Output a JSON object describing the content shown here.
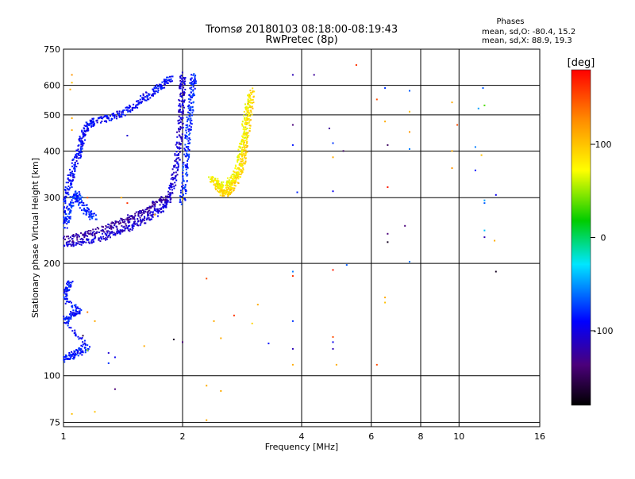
{
  "chart_data": {
    "type": "scatter",
    "title": "Tromsø 20180103 08:18:00-08:19:43",
    "subtitle": "RwPretec (8p)",
    "xlabel": "Frequency [MHz]",
    "ylabel": "Stationary phase Virtual Height [km]",
    "x_scale": "log",
    "y_scale": "log",
    "xlim": [
      1,
      16
    ],
    "ylim": [
      73,
      750
    ],
    "x_ticks": [
      1,
      2,
      4,
      6,
      8,
      10,
      16
    ],
    "x_tick_labels": [
      "1",
      "2",
      "4",
      "6",
      "8",
      "10",
      "16"
    ],
    "y_ticks": [
      75,
      100,
      200,
      300,
      400,
      500,
      600,
      750
    ],
    "y_tick_labels": [
      "75",
      "100",
      "200",
      "300",
      "400",
      "500",
      "600",
      "750"
    ],
    "grid": true,
    "stats": {
      "heading": "Phases",
      "line_o": "mean, sd,O: -80.4, 15.2",
      "line_x": "mean, sd,X:  88.9, 19.3"
    },
    "colorbar": {
      "label": "[deg]",
      "range": [
        -180,
        180
      ],
      "ticks": [
        100,
        0,
        -100
      ],
      "tick_labels": [
        "100",
        "0",
        "-100"
      ]
    },
    "traces": [
      {
        "kind": "trace",
        "phase": -110,
        "points": [
          [
            1.0,
            225
          ],
          [
            1.1,
            227
          ],
          [
            1.2,
            232
          ],
          [
            1.3,
            238
          ],
          [
            1.4,
            245
          ],
          [
            1.5,
            252
          ],
          [
            1.6,
            262
          ],
          [
            1.7,
            272
          ],
          [
            1.8,
            285
          ],
          [
            1.85,
            300
          ],
          [
            1.9,
            330
          ],
          [
            1.93,
            370
          ],
          [
            1.96,
            420
          ],
          [
            1.98,
            480
          ],
          [
            1.99,
            540
          ],
          [
            2.0,
            600
          ],
          [
            2.0,
            640
          ]
        ]
      },
      {
        "kind": "trace",
        "phase": -125,
        "points": [
          [
            1.0,
            232
          ],
          [
            1.1,
            236
          ],
          [
            1.2,
            243
          ],
          [
            1.3,
            250
          ],
          [
            1.4,
            258
          ],
          [
            1.5,
            266
          ],
          [
            1.6,
            276
          ],
          [
            1.7,
            288
          ],
          [
            1.8,
            302
          ]
        ]
      },
      {
        "kind": "trace",
        "phase": -95,
        "points": [
          [
            1.0,
            260
          ],
          [
            1.0,
            290
          ],
          [
            1.03,
            320
          ],
          [
            1.05,
            350
          ],
          [
            1.08,
            380
          ],
          [
            1.1,
            410
          ],
          [
            1.12,
            440
          ],
          [
            1.15,
            470
          ],
          [
            1.2,
            480
          ],
          [
            1.3,
            490
          ],
          [
            1.4,
            505
          ],
          [
            1.5,
            525
          ],
          [
            1.6,
            555
          ],
          [
            1.7,
            580
          ],
          [
            1.8,
            605
          ],
          [
            1.88,
            630
          ]
        ]
      },
      {
        "kind": "trace",
        "phase": -85,
        "points": [
          [
            2.0,
            290
          ],
          [
            2.02,
            330
          ],
          [
            2.04,
            380
          ],
          [
            2.06,
            430
          ],
          [
            2.08,
            480
          ],
          [
            2.1,
            540
          ],
          [
            2.12,
            600
          ],
          [
            2.14,
            640
          ]
        ]
      },
      {
        "kind": "trace",
        "phase": -85,
        "points": [
          [
            1.0,
            250
          ],
          [
            1.03,
            270
          ],
          [
            1.05,
            295
          ],
          [
            1.08,
            310
          ],
          [
            1.1,
            290
          ],
          [
            1.15,
            275
          ],
          [
            1.2,
            265
          ]
        ]
      },
      {
        "kind": "trace",
        "phase": 90,
        "points": [
          [
            2.4,
            335
          ],
          [
            2.48,
            315
          ],
          [
            2.55,
            308
          ],
          [
            2.62,
            312
          ],
          [
            2.7,
            328
          ],
          [
            2.78,
            345
          ],
          [
            2.84,
            375
          ],
          [
            2.88,
            410
          ],
          [
            2.92,
            460
          ],
          [
            2.96,
            520
          ],
          [
            3.0,
            590
          ]
        ]
      },
      {
        "kind": "trace",
        "phase": 70,
        "points": [
          [
            2.35,
            340
          ],
          [
            2.5,
            322
          ],
          [
            2.62,
            328
          ],
          [
            2.75,
            350
          ],
          [
            2.82,
            400
          ],
          [
            2.85,
            440
          ],
          [
            2.9,
            500
          ],
          [
            2.95,
            560
          ]
        ]
      },
      {
        "kind": "trace",
        "phase": -90,
        "points": [
          [
            1.0,
            110
          ],
          [
            1.05,
            113
          ],
          [
            1.1,
            116
          ],
          [
            1.15,
            120
          ],
          [
            1.0,
            140
          ],
          [
            1.05,
            145
          ],
          [
            1.1,
            150
          ],
          [
            1.0,
            160
          ],
          [
            1.02,
            170
          ],
          [
            1.04,
            180
          ]
        ]
      }
    ],
    "scatter": [
      {
        "x": 3.8,
        "y": 640,
        "phase": -120
      },
      {
        "x": 4.3,
        "y": 640,
        "phase": -130
      },
      {
        "x": 5.5,
        "y": 680,
        "phase": 160
      },
      {
        "x": 3.8,
        "y": 470,
        "phase": -140
      },
      {
        "x": 4.7,
        "y": 460,
        "phase": -130
      },
      {
        "x": 3.8,
        "y": 415,
        "phase": -90
      },
      {
        "x": 4.8,
        "y": 420,
        "phase": -80
      },
      {
        "x": 5.1,
        "y": 400,
        "phase": -150
      },
      {
        "x": 4.8,
        "y": 385,
        "phase": 110
      },
      {
        "x": 3.9,
        "y": 310,
        "phase": -85
      },
      {
        "x": 4.8,
        "y": 312,
        "phase": -100
      },
      {
        "x": 6.2,
        "y": 550,
        "phase": 150
      },
      {
        "x": 6.5,
        "y": 590,
        "phase": -80
      },
      {
        "x": 6.5,
        "y": 480,
        "phase": 110
      },
      {
        "x": 6.6,
        "y": 415,
        "phase": -150
      },
      {
        "x": 7.5,
        "y": 580,
        "phase": -70
      },
      {
        "x": 7.5,
        "y": 510,
        "phase": 100
      },
      {
        "x": 7.5,
        "y": 450,
        "phase": 120
      },
      {
        "x": 7.5,
        "y": 405,
        "phase": -60
      },
      {
        "x": 6.6,
        "y": 320,
        "phase": 170
      },
      {
        "x": 6.6,
        "y": 240,
        "phase": -140
      },
      {
        "x": 6.6,
        "y": 228,
        "phase": -170
      },
      {
        "x": 7.3,
        "y": 252,
        "phase": -140
      },
      {
        "x": 7.5,
        "y": 202,
        "phase": -60
      },
      {
        "x": 9.6,
        "y": 540,
        "phase": 110
      },
      {
        "x": 9.9,
        "y": 470,
        "phase": 150
      },
      {
        "x": 9.6,
        "y": 400,
        "phase": 110
      },
      {
        "x": 9.6,
        "y": 360,
        "phase": 120
      },
      {
        "x": 11.5,
        "y": 590,
        "phase": -70
      },
      {
        "x": 11.2,
        "y": 520,
        "phase": -50
      },
      {
        "x": 11.6,
        "y": 530,
        "phase": 20
      },
      {
        "x": 11.0,
        "y": 410,
        "phase": -60
      },
      {
        "x": 11.4,
        "y": 390,
        "phase": 100
      },
      {
        "x": 11.0,
        "y": 355,
        "phase": -90
      },
      {
        "x": 12.4,
        "y": 305,
        "phase": -100
      },
      {
        "x": 11.6,
        "y": 295,
        "phase": -50
      },
      {
        "x": 11.6,
        "y": 290,
        "phase": -70
      },
      {
        "x": 11.6,
        "y": 245,
        "phase": -40
      },
      {
        "x": 11.6,
        "y": 235,
        "phase": -120
      },
      {
        "x": 12.3,
        "y": 230,
        "phase": 110
      },
      {
        "x": 12.4,
        "y": 190,
        "phase": -170
      },
      {
        "x": 3.8,
        "y": 190,
        "phase": -60
      },
      {
        "x": 3.8,
        "y": 185,
        "phase": 160
      },
      {
        "x": 4.8,
        "y": 192,
        "phase": 170
      },
      {
        "x": 5.2,
        "y": 198,
        "phase": -70
      },
      {
        "x": 2.3,
        "y": 182,
        "phase": 150
      },
      {
        "x": 2.4,
        "y": 140,
        "phase": 110
      },
      {
        "x": 2.7,
        "y": 145,
        "phase": 160
      },
      {
        "x": 3.1,
        "y": 155,
        "phase": 110
      },
      {
        "x": 3.0,
        "y": 138,
        "phase": 90
      },
      {
        "x": 2.5,
        "y": 126,
        "phase": 110
      },
      {
        "x": 1.9,
        "y": 125,
        "phase": -170
      },
      {
        "x": 2.0,
        "y": 123,
        "phase": -140
      },
      {
        "x": 3.3,
        "y": 122,
        "phase": -90
      },
      {
        "x": 3.8,
        "y": 140,
        "phase": -80
      },
      {
        "x": 3.8,
        "y": 118,
        "phase": -120
      },
      {
        "x": 4.8,
        "y": 127,
        "phase": 150
      },
      {
        "x": 4.8,
        "y": 123,
        "phase": -100
      },
      {
        "x": 4.8,
        "y": 118,
        "phase": -120
      },
      {
        "x": 3.8,
        "y": 107,
        "phase": 110
      },
      {
        "x": 4.9,
        "y": 107,
        "phase": 110
      },
      {
        "x": 6.2,
        "y": 107,
        "phase": 150
      },
      {
        "x": 6.5,
        "y": 162,
        "phase": 110
      },
      {
        "x": 6.5,
        "y": 157,
        "phase": 100
      },
      {
        "x": 1.6,
        "y": 120,
        "phase": 110
      },
      {
        "x": 1.3,
        "y": 108,
        "phase": -80
      },
      {
        "x": 1.35,
        "y": 92,
        "phase": -140
      },
      {
        "x": 2.3,
        "y": 94,
        "phase": 110
      },
      {
        "x": 2.5,
        "y": 91,
        "phase": 110
      },
      {
        "x": 2.3,
        "y": 76,
        "phase": 110
      },
      {
        "x": 1.05,
        "y": 79,
        "phase": 100
      },
      {
        "x": 1.2,
        "y": 80,
        "phase": 100
      },
      {
        "x": 1.05,
        "y": 490,
        "phase": 110
      },
      {
        "x": 1.05,
        "y": 455,
        "phase": 110
      },
      {
        "x": 1.05,
        "y": 610,
        "phase": 100
      },
      {
        "x": 1.04,
        "y": 585,
        "phase": 110
      },
      {
        "x": 1.05,
        "y": 640,
        "phase": 120
      },
      {
        "x": 1.45,
        "y": 440,
        "phase": -110
      },
      {
        "x": 1.15,
        "y": 148,
        "phase": 130
      },
      {
        "x": 1.2,
        "y": 140,
        "phase": 110
      },
      {
        "x": 1.15,
        "y": 117,
        "phase": 40
      },
      {
        "x": 1.12,
        "y": 128,
        "phase": -160
      },
      {
        "x": 1.3,
        "y": 115,
        "phase": -110
      },
      {
        "x": 1.35,
        "y": 112,
        "phase": -100
      },
      {
        "x": 1.15,
        "y": 300,
        "phase": 150
      },
      {
        "x": 1.4,
        "y": 300,
        "phase": 110
      },
      {
        "x": 1.45,
        "y": 290,
        "phase": 160
      },
      {
        "x": 1.7,
        "y": 270,
        "phase": 110
      },
      {
        "x": 2.0,
        "y": 297,
        "phase": 110
      }
    ]
  }
}
